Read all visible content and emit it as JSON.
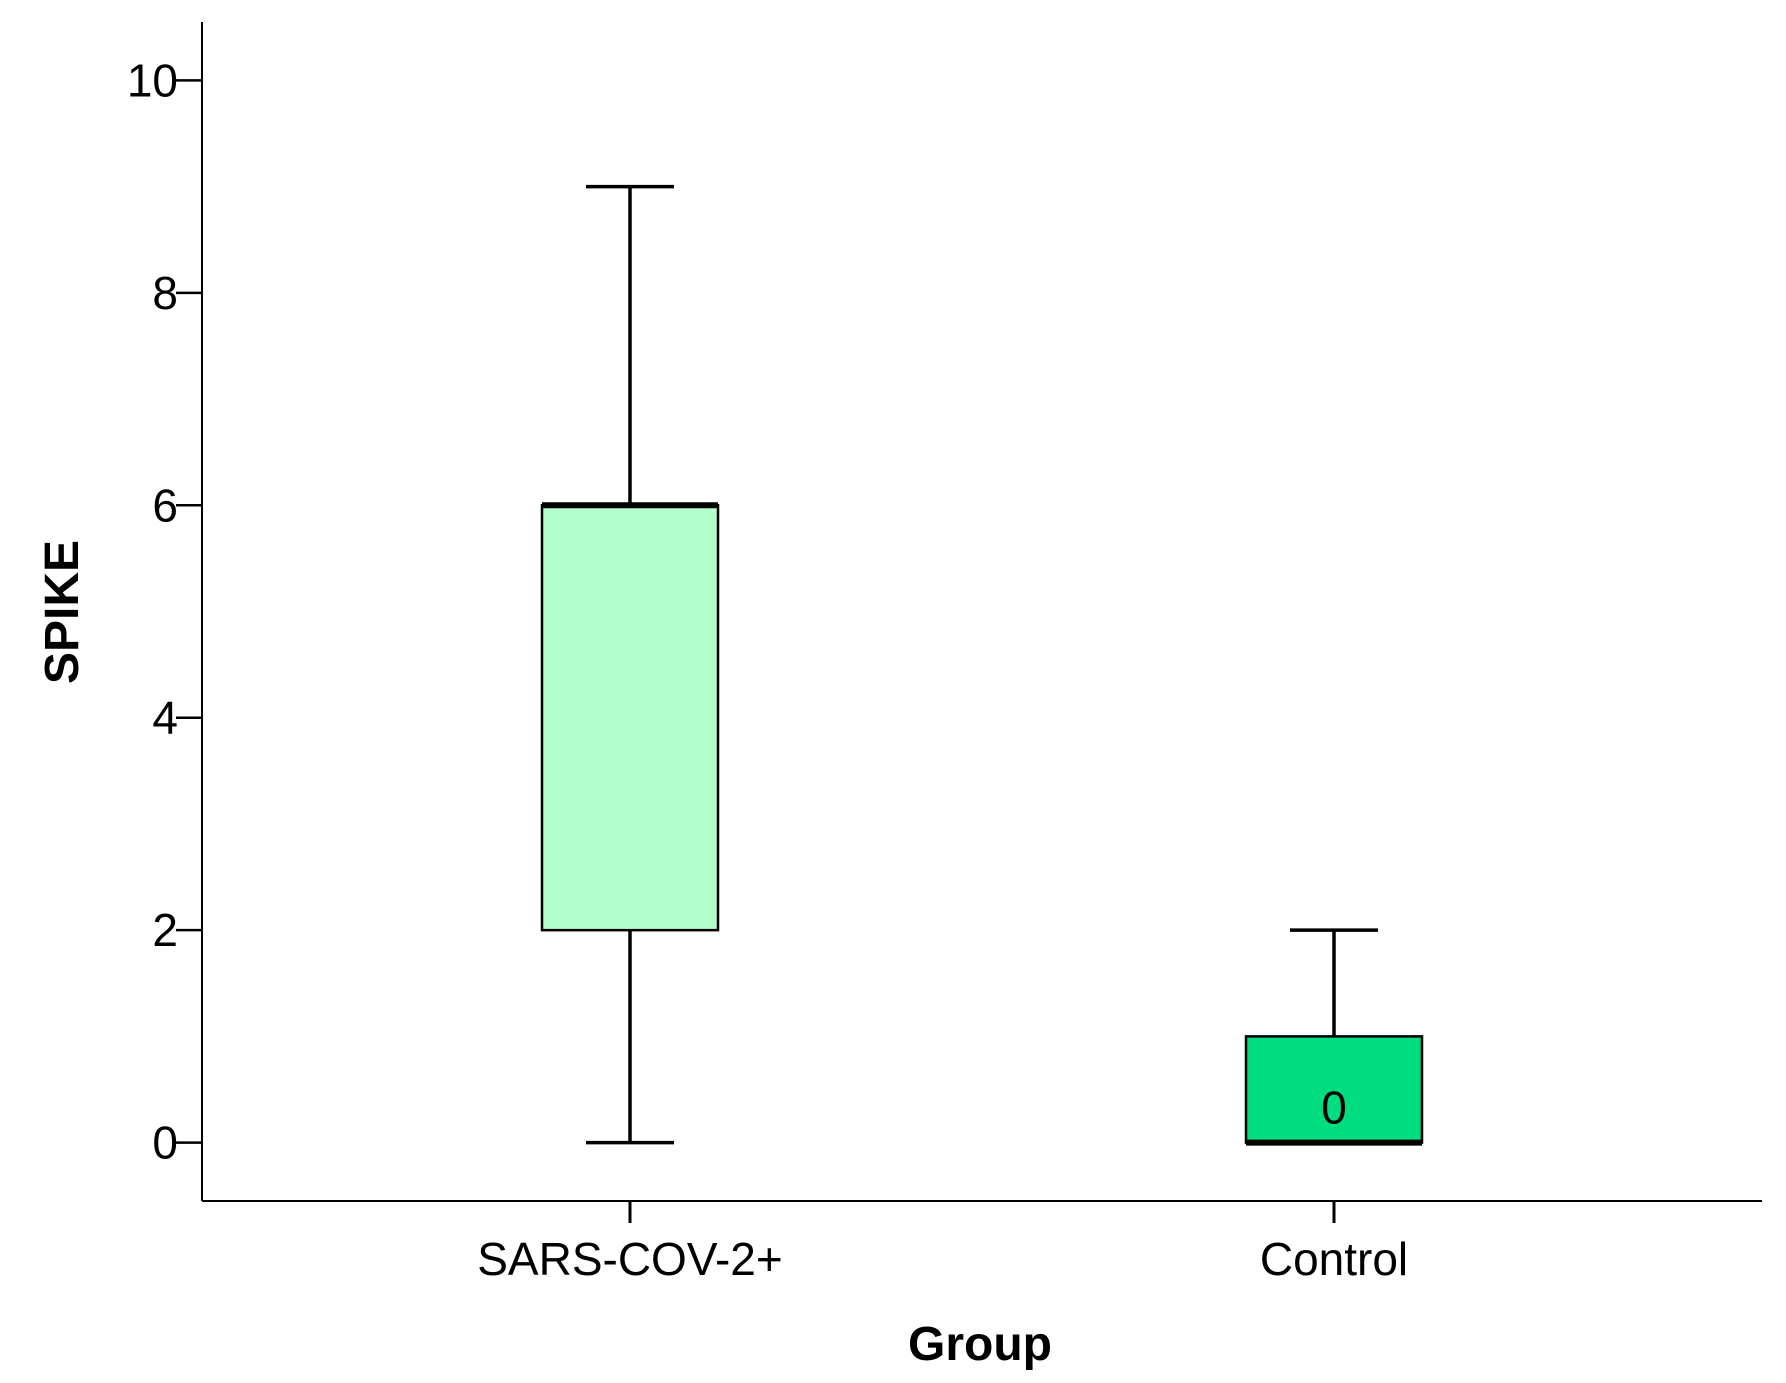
{
  "chart_data": {
    "type": "boxplot",
    "xlabel": "Group",
    "ylabel": "SPIKE",
    "ylim": [
      -0.55,
      10.55
    ],
    "yticks": [
      0,
      2,
      4,
      6,
      8,
      10
    ],
    "grid": false,
    "categories": [
      "SARS-COV-2+",
      "Control"
    ],
    "boxes": [
      {
        "category": "SARS-COV-2+",
        "min": 0,
        "q1": 2,
        "median": 6,
        "q3": 6,
        "max": 9,
        "color": "#b3ffcc"
      },
      {
        "category": "Control",
        "min": 0,
        "q1": 0,
        "median": 0,
        "q3": 1,
        "max": 2,
        "color": "#00dd80"
      }
    ],
    "annotations": [
      {
        "category": "Control",
        "y": 0.33,
        "text": "0"
      }
    ]
  }
}
